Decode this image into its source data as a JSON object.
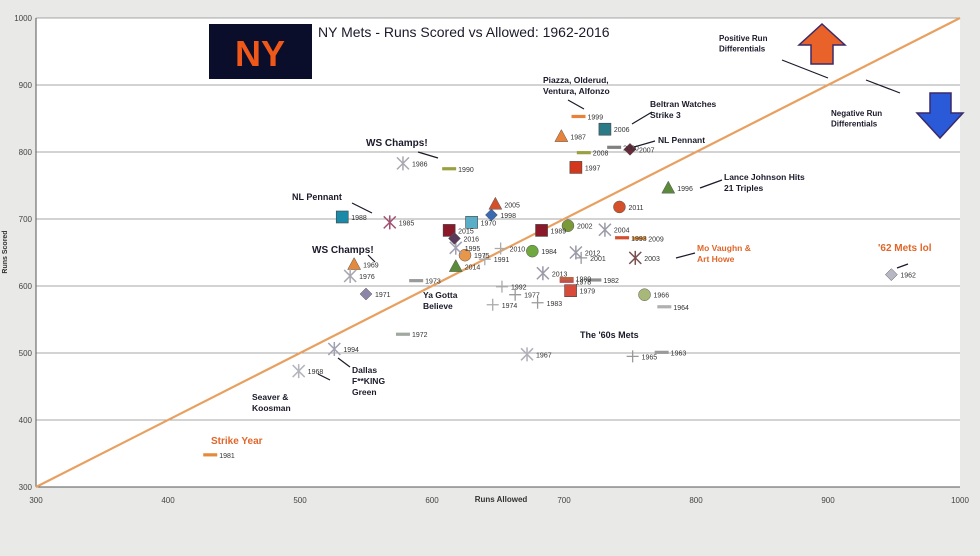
{
  "chart_data": {
    "type": "scatter",
    "title": "NY Mets - Runs Scored vs Allowed: 1962-2016",
    "xlabel": "Runs Allowed",
    "ylabel": "Runs Scored",
    "xlim": [
      300,
      1000
    ],
    "ylim": [
      300,
      1000
    ],
    "x_ticks": [
      "300",
      "400",
      "500",
      "600",
      "700",
      "800",
      "900",
      "1000"
    ],
    "y_ticks": [
      "300",
      "400",
      "500",
      "600",
      "700",
      "800",
      "900",
      "1000"
    ],
    "grid": "horizontal",
    "reference_line": "y = x",
    "points": [
      {
        "year": "1962",
        "ra": 948,
        "rs": 617,
        "shape": "diamond",
        "color": "#b8b8c4"
      },
      {
        "year": "1963",
        "ra": 774,
        "rs": 501,
        "shape": "dash",
        "color": "#9a9a9a"
      },
      {
        "year": "1964",
        "ra": 776,
        "rs": 569,
        "shape": "dash",
        "color": "#b0b0b0"
      },
      {
        "year": "1965",
        "ra": 752,
        "rs": 495,
        "shape": "plus",
        "color": "#999999"
      },
      {
        "year": "1966",
        "ra": 761,
        "rs": 587,
        "shape": "circle",
        "color": "#a8b878"
      },
      {
        "year": "1967",
        "ra": 672,
        "rs": 498,
        "shape": "star",
        "color": "#b0b0b8"
      },
      {
        "year": "1968",
        "ra": 499,
        "rs": 473,
        "shape": "star",
        "color": "#b4b4bc"
      },
      {
        "year": "1969",
        "ra": 541,
        "rs": 632,
        "shape": "triangle",
        "color": "#e58a3c"
      },
      {
        "year": "1970",
        "ra": 630,
        "rs": 695,
        "shape": "square",
        "color": "#5aaec8"
      },
      {
        "year": "1971",
        "ra": 550,
        "rs": 588,
        "shape": "diamond",
        "color": "#8e86a8"
      },
      {
        "year": "1972",
        "ra": 578,
        "rs": 528,
        "shape": "dash",
        "color": "#a0a8a0"
      },
      {
        "year": "1973",
        "ra": 588,
        "rs": 608,
        "shape": "dash",
        "color": "#9a9a9a"
      },
      {
        "year": "1974",
        "ra": 646,
        "rs": 572,
        "shape": "plus",
        "color": "#aaaaaa"
      },
      {
        "year": "1975",
        "ra": 625,
        "rs": 646,
        "shape": "circle",
        "color": "#e8964a"
      },
      {
        "year": "1976",
        "ra": 538,
        "rs": 615,
        "shape": "star",
        "color": "#a8a8b0"
      },
      {
        "year": "1977",
        "ra": 663,
        "rs": 587,
        "shape": "plus",
        "color": "#9a9a9a"
      },
      {
        "year": "1978",
        "ra": 702,
        "rs": 607,
        "shape": "dash",
        "color": "#c05050"
      },
      {
        "year": "1979",
        "ra": 705,
        "rs": 593,
        "shape": "square",
        "color": "#d84a3a"
      },
      {
        "year": "1980",
        "ra": 702,
        "rs": 611,
        "shape": "dash",
        "color": "#c06040"
      },
      {
        "year": "1981",
        "ra": 432,
        "rs": 348,
        "shape": "dash",
        "color": "#e58a3c"
      },
      {
        "year": "1982",
        "ra": 723,
        "rs": 609,
        "shape": "dash",
        "color": "#909090"
      },
      {
        "year": "1983",
        "ra": 680,
        "rs": 575,
        "shape": "plus",
        "color": "#9a9a9a"
      },
      {
        "year": "1984",
        "ra": 676,
        "rs": 652,
        "shape": "circle",
        "color": "#6fa83e"
      },
      {
        "year": "1985",
        "ra": 568,
        "rs": 695,
        "shape": "star",
        "color": "#a05070"
      },
      {
        "year": "1986",
        "ra": 578,
        "rs": 783,
        "shape": "star",
        "color": "#a8a8b0"
      },
      {
        "year": "1987",
        "ra": 698,
        "rs": 823,
        "shape": "triangle",
        "color": "#e8823a"
      },
      {
        "year": "1988",
        "ra": 532,
        "rs": 703,
        "shape": "square",
        "color": "#1a8aa8"
      },
      {
        "year": "1989",
        "ra": 683,
        "rs": 683,
        "shape": "square",
        "color": "#8a1a2a"
      },
      {
        "year": "1990",
        "ra": 613,
        "rs": 775,
        "shape": "dash",
        "color": "#9aa040"
      },
      {
        "year": "1991",
        "ra": 640,
        "rs": 640,
        "shape": "plus",
        "color": "#aaaaaa"
      },
      {
        "year": "1992",
        "ra": 653,
        "rs": 599,
        "shape": "plus",
        "color": "#aaaaaa"
      },
      {
        "year": "1993",
        "ra": 744,
        "rs": 672,
        "shape": "dash",
        "color": "#d05030"
      },
      {
        "year": "1994",
        "ra": 526,
        "rs": 506,
        "shape": "star",
        "color": "#a0a0b0"
      },
      {
        "year": "1995",
        "ra": 618,
        "rs": 657,
        "shape": "star",
        "color": "#a0a0b0"
      },
      {
        "year": "1996",
        "ra": 779,
        "rs": 746,
        "shape": "triangle",
        "color": "#5a8a3a"
      },
      {
        "year": "1997",
        "ra": 709,
        "rs": 777,
        "shape": "square",
        "color": "#d4381c"
      },
      {
        "year": "1998",
        "ra": 645,
        "rs": 706,
        "shape": "diamond",
        "color": "#3a6ab0"
      },
      {
        "year": "1999",
        "ra": 711,
        "rs": 853,
        "shape": "dash",
        "color": "#e8823a"
      },
      {
        "year": "2000",
        "ra": 738,
        "rs": 807,
        "shape": "dash",
        "color": "#808080"
      },
      {
        "year": "2001",
        "ra": 713,
        "rs": 642,
        "shape": "plus",
        "color": "#999999"
      },
      {
        "year": "2002",
        "ra": 703,
        "rs": 690,
        "shape": "circle",
        "color": "#7a9a3a"
      },
      {
        "year": "2003",
        "ra": 754,
        "rs": 642,
        "shape": "star",
        "color": "#7a5050"
      },
      {
        "year": "2004",
        "ra": 731,
        "rs": 684,
        "shape": "star",
        "color": "#9a9aa8"
      },
      {
        "year": "2005",
        "ra": 648,
        "rs": 722,
        "shape": "triangle",
        "color": "#d4502a"
      },
      {
        "year": "2006",
        "ra": 731,
        "rs": 834,
        "shape": "square",
        "color": "#2a7a88"
      },
      {
        "year": "2007",
        "ra": 750,
        "rs": 804,
        "shape": "diamond",
        "color": "#6a2a3a"
      },
      {
        "year": "2008",
        "ra": 715,
        "rs": 799,
        "shape": "dash",
        "color": "#9aa040"
      },
      {
        "year": "2009",
        "ra": 757,
        "rs": 671,
        "shape": "dash",
        "color": "#e09040"
      },
      {
        "year": "2010",
        "ra": 652,
        "rs": 656,
        "shape": "plus",
        "color": "#aaaaaa"
      },
      {
        "year": "2011",
        "ra": 742,
        "rs": 718,
        "shape": "circle",
        "color": "#d4502a"
      },
      {
        "year": "2012",
        "ra": 709,
        "rs": 650,
        "shape": "star",
        "color": "#9a9aa8"
      },
      {
        "year": "2013",
        "ra": 684,
        "rs": 619,
        "shape": "star",
        "color": "#9a9aa8"
      },
      {
        "year": "2014",
        "ra": 618,
        "rs": 629,
        "shape": "triangle",
        "color": "#5a8a3a"
      },
      {
        "year": "2015",
        "ra": 613,
        "rs": 683,
        "shape": "square",
        "color": "#8a1a2a"
      },
      {
        "year": "2016",
        "ra": 617,
        "rs": 671,
        "shape": "diamond",
        "color": "#5a3a5a"
      }
    ],
    "annotations": [
      {
        "text": "WS Champs!",
        "color": "#1a1a2a"
      },
      {
        "text": "NL Pennant",
        "color": "#1a1a2a"
      },
      {
        "text": "WS Champs!",
        "color": "#1a1a2a"
      },
      {
        "text": "Piazza, Olderud, Ventura, Alfonzo",
        "color": "#1a1a2a"
      },
      {
        "text": "Beltran Watches Strike 3",
        "color": "#1a1a2a"
      },
      {
        "text": "NL Pennant",
        "color": "#1a1a2a"
      },
      {
        "text": "Lance Johnson Hits 21 Triples",
        "color": "#1a1a2a"
      },
      {
        "text": "Mo Vaughn & Art Howe",
        "color": "#e0662a"
      },
      {
        "text": "'62 Mets lol",
        "color": "#e0662a"
      },
      {
        "text": "Ya Gotta Believe",
        "color": "#1a1a2a"
      },
      {
        "text": "The '60s Mets",
        "color": "#1a1a2a"
      },
      {
        "text": "Dallas F**KING Green",
        "color": "#1a1a2a"
      },
      {
        "text": "Seaver & Koosman",
        "color": "#1a1a2a"
      },
      {
        "text": "Strike Year",
        "color": "#e0662a"
      },
      {
        "text": "Positive Run Differentials",
        "color": "#1a1a2a"
      },
      {
        "text": "Negative Run Differentials",
        "color": "#1a1a2a"
      }
    ],
    "logo": {
      "text": "NY",
      "bg": "#0a0e2a",
      "fg": "#f0581a"
    },
    "colors": {
      "diagonal": "#e8a060",
      "grid": "#8a8a8a",
      "up_arrow": "#e8622a",
      "down_arrow": "#2a5ad8",
      "arrow_outline": "#3a2a6a"
    }
  }
}
